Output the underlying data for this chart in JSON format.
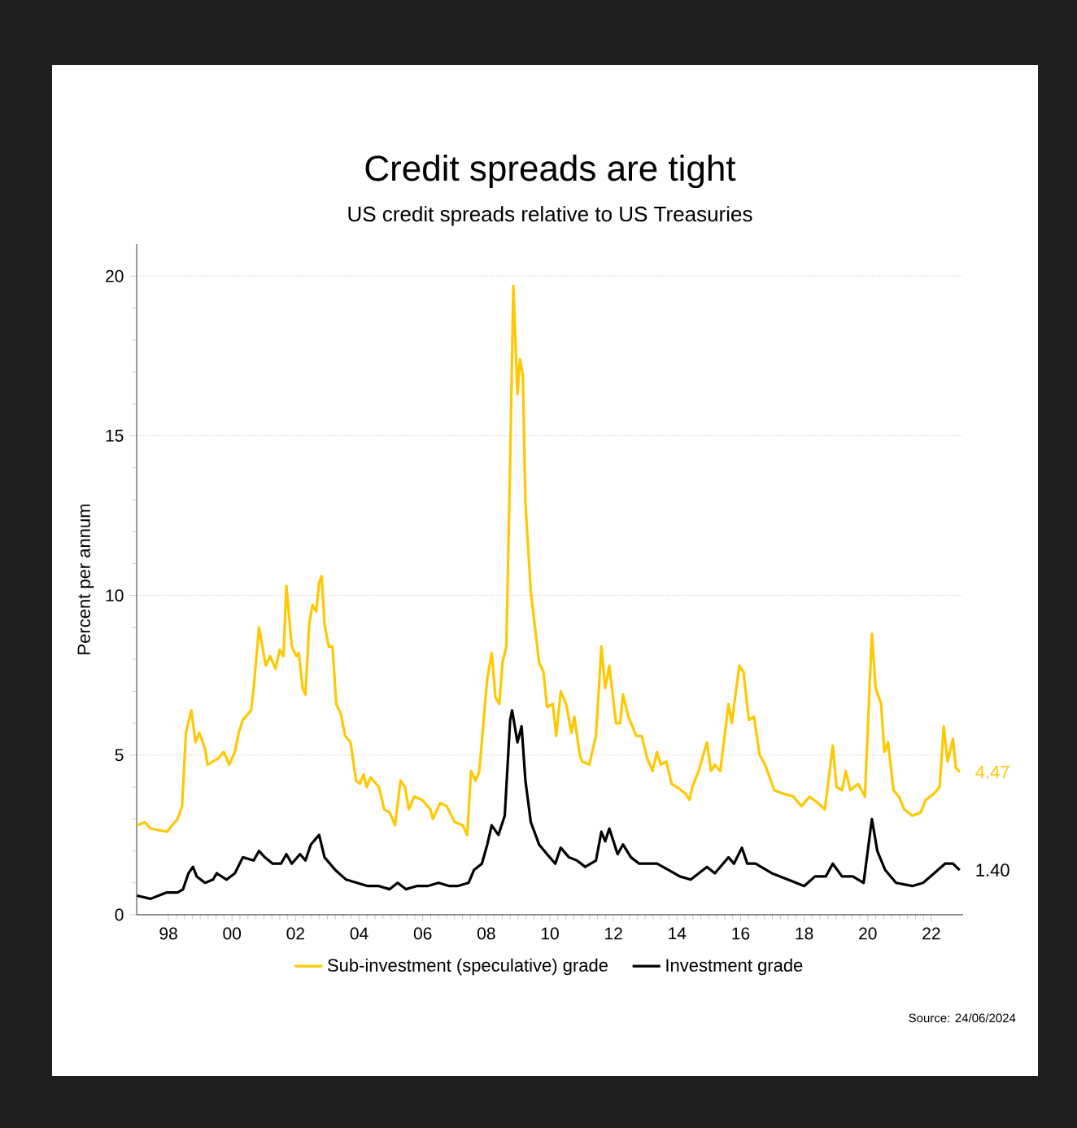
{
  "chart_data": {
    "type": "line",
    "title": "Credit spreads are tight",
    "subtitle": "US credit spreads relative to US Treasuries",
    "ylabel": "Percent per annum",
    "xlim": [
      1997,
      2023
    ],
    "ylim": [
      0,
      21
    ],
    "xticks": [
      {
        "value": 1998,
        "label": "98"
      },
      {
        "value": 2000,
        "label": "00"
      },
      {
        "value": 2002,
        "label": "02"
      },
      {
        "value": 2004,
        "label": "04"
      },
      {
        "value": 2006,
        "label": "06"
      },
      {
        "value": 2008,
        "label": "08"
      },
      {
        "value": 2010,
        "label": "10"
      },
      {
        "value": 2012,
        "label": "12"
      },
      {
        "value": 2014,
        "label": "14"
      },
      {
        "value": 2016,
        "label": "16"
      },
      {
        "value": 2018,
        "label": "18"
      },
      {
        "value": 2020,
        "label": "20"
      },
      {
        "value": 2022,
        "label": "22"
      }
    ],
    "yticks": [
      0,
      5,
      10,
      15,
      20
    ],
    "grid": "y",
    "legend": "bottom",
    "line_style": "solid",
    "series": [
      {
        "name": "Sub-investment (speculative) grade",
        "color": "#ffc800",
        "x": [
          1997.01,
          1997.26,
          1997.44,
          1997.95,
          1998.29,
          1998.43,
          1998.55,
          1998.72,
          1998.85,
          1998.97,
          1999.15,
          1999.23,
          1999.57,
          1999.74,
          1999.91,
          2000.09,
          2000.21,
          2000.34,
          2000.6,
          2000.68,
          2000.85,
          2001.06,
          2001.2,
          2001.37,
          2001.5,
          2001.62,
          2001.71,
          2001.88,
          2002.02,
          2002.1,
          2002.22,
          2002.31,
          2002.43,
          2002.53,
          2002.65,
          2002.74,
          2002.82,
          2002.91,
          2003.04,
          2003.16,
          2003.28,
          2003.42,
          2003.56,
          2003.73,
          2003.9,
          2004.02,
          2004.14,
          2004.24,
          2004.36,
          2004.62,
          2004.79,
          2004.96,
          2005.13,
          2005.3,
          2005.44,
          2005.56,
          2005.73,
          2005.98,
          2006.24,
          2006.32,
          2006.55,
          2006.75,
          2007.01,
          2007.26,
          2007.4,
          2007.52,
          2007.66,
          2007.78,
          2007.9,
          2008.03,
          2008.17,
          2008.29,
          2008.41,
          2008.51,
          2008.63,
          2008.75,
          2008.85,
          2008.98,
          2009.06,
          2009.15,
          2009.23,
          2009.4,
          2009.52,
          2009.66,
          2009.8,
          2009.91,
          2010.09,
          2010.2,
          2010.34,
          2010.51,
          2010.68,
          2010.77,
          2010.94,
          2011.02,
          2011.24,
          2011.45,
          2011.62,
          2011.74,
          2011.87,
          2012.08,
          2012.21,
          2012.3,
          2012.47,
          2012.72,
          2012.89,
          2013.06,
          2013.23,
          2013.37,
          2013.49,
          2013.66,
          2013.83,
          2014.0,
          2014.26,
          2014.39,
          2014.48,
          2014.68,
          2014.94,
          2015.07,
          2015.19,
          2015.36,
          2015.62,
          2015.72,
          2015.96,
          2016.09,
          2016.26,
          2016.42,
          2016.6,
          2016.77,
          2017.06,
          2017.32,
          2017.66,
          2017.91,
          2018.17,
          2018.43,
          2018.65,
          2018.9,
          2019.02,
          2019.19,
          2019.31,
          2019.45,
          2019.7,
          2019.91,
          2020.13,
          2020.25,
          2020.42,
          2020.52,
          2020.64,
          2020.81,
          2020.98,
          2021.15,
          2021.4,
          2021.66,
          2021.83,
          2022.09,
          2022.26,
          2022.39,
          2022.51,
          2022.68,
          2022.77,
          2022.89
        ],
        "values": [
          2.8,
          2.9,
          2.7,
          2.6,
          3.0,
          3.4,
          5.7,
          6.4,
          5.4,
          5.7,
          5.2,
          4.7,
          4.9,
          5.1,
          4.7,
          5.1,
          5.7,
          6.1,
          6.4,
          7.1,
          9.0,
          7.8,
          8.1,
          7.7,
          8.3,
          8.1,
          10.3,
          8.4,
          8.1,
          8.2,
          7.1,
          6.9,
          9.1,
          9.7,
          9.5,
          10.4,
          10.6,
          9.1,
          8.4,
          8.4,
          6.6,
          6.3,
          5.6,
          5.4,
          4.2,
          4.1,
          4.4,
          4.0,
          4.3,
          4.0,
          3.3,
          3.2,
          2.8,
          4.2,
          4.0,
          3.3,
          3.7,
          3.6,
          3.3,
          3.0,
          3.5,
          3.4,
          2.9,
          2.8,
          2.5,
          4.5,
          4.2,
          4.5,
          5.9,
          7.4,
          8.2,
          6.8,
          6.6,
          7.9,
          8.4,
          14.2,
          19.7,
          16.3,
          17.4,
          16.9,
          12.9,
          10.1,
          9.1,
          7.9,
          7.6,
          6.5,
          6.6,
          5.6,
          7.0,
          6.6,
          5.7,
          6.2,
          5.0,
          4.8,
          4.7,
          5.6,
          8.4,
          7.1,
          7.8,
          6.0,
          6.0,
          6.9,
          6.2,
          5.6,
          5.6,
          4.9,
          4.5,
          5.1,
          4.7,
          4.8,
          4.1,
          4.0,
          3.8,
          3.6,
          4.0,
          4.5,
          5.4,
          4.5,
          4.7,
          4.5,
          6.6,
          6.0,
          7.8,
          7.6,
          6.1,
          6.2,
          5.0,
          4.7,
          3.9,
          3.8,
          3.7,
          3.4,
          3.7,
          3.5,
          3.3,
          5.3,
          4.0,
          3.9,
          4.5,
          3.9,
          4.1,
          3.7,
          8.8,
          7.1,
          6.6,
          5.1,
          5.4,
          3.9,
          3.7,
          3.3,
          3.1,
          3.2,
          3.6,
          3.8,
          4.0,
          5.9,
          4.8,
          5.5,
          4.6,
          4.47
        ]
      },
      {
        "name": "Investment grade",
        "color": "#000000",
        "x": [
          1997.01,
          1997.44,
          1997.69,
          1997.95,
          1998.29,
          1998.46,
          1998.63,
          1998.77,
          1998.89,
          1999.15,
          1999.4,
          1999.52,
          1999.83,
          2000.09,
          2000.34,
          2000.68,
          2000.85,
          2001.03,
          2001.28,
          2001.54,
          2001.71,
          2001.88,
          2002.14,
          2002.31,
          2002.48,
          2002.74,
          2002.91,
          2003.25,
          2003.59,
          2003.93,
          2004.27,
          2004.62,
          2004.96,
          2005.21,
          2005.47,
          2005.81,
          2006.15,
          2006.5,
          2006.84,
          2007.09,
          2007.44,
          2007.61,
          2007.86,
          2008.03,
          2008.17,
          2008.38,
          2008.58,
          2008.75,
          2008.81,
          2008.98,
          2009.11,
          2009.23,
          2009.4,
          2009.66,
          2009.91,
          2010.17,
          2010.34,
          2010.6,
          2010.85,
          2011.11,
          2011.45,
          2011.62,
          2011.74,
          2011.87,
          2012.13,
          2012.3,
          2012.55,
          2012.81,
          2013.06,
          2013.37,
          2013.74,
          2014.09,
          2014.43,
          2014.94,
          2015.19,
          2015.62,
          2015.79,
          2016.04,
          2016.21,
          2016.47,
          2016.98,
          2017.49,
          2018.0,
          2018.34,
          2018.68,
          2018.9,
          2019.19,
          2019.53,
          2019.87,
          2020.13,
          2020.3,
          2020.55,
          2020.89,
          2021.4,
          2021.74,
          2022.09,
          2022.43,
          2022.68,
          2022.89
        ],
        "values": [
          0.6,
          0.5,
          0.6,
          0.7,
          0.7,
          0.8,
          1.3,
          1.5,
          1.2,
          1.0,
          1.1,
          1.3,
          1.1,
          1.3,
          1.8,
          1.7,
          2.0,
          1.8,
          1.6,
          1.6,
          1.9,
          1.6,
          1.9,
          1.7,
          2.2,
          2.5,
          1.8,
          1.4,
          1.1,
          1.0,
          0.9,
          0.9,
          0.8,
          1.0,
          0.8,
          0.9,
          0.9,
          1.0,
          0.9,
          0.9,
          1.0,
          1.4,
          1.6,
          2.2,
          2.8,
          2.5,
          3.1,
          6.1,
          6.4,
          5.4,
          5.9,
          4.2,
          2.9,
          2.2,
          1.9,
          1.6,
          2.1,
          1.8,
          1.7,
          1.5,
          1.7,
          2.6,
          2.3,
          2.7,
          1.9,
          2.2,
          1.8,
          1.6,
          1.6,
          1.6,
          1.4,
          1.2,
          1.1,
          1.5,
          1.3,
          1.8,
          1.6,
          2.1,
          1.6,
          1.6,
          1.3,
          1.1,
          0.9,
          1.2,
          1.2,
          1.6,
          1.2,
          1.2,
          1.0,
          3.0,
          2.0,
          1.4,
          1.0,
          0.9,
          1.0,
          1.3,
          1.6,
          1.6,
          1.4
        ]
      }
    ],
    "annotations": [
      {
        "text": "4.47",
        "x": 2022.89,
        "y": 4.47
      },
      {
        "text": "1.40",
        "x": 2022.89,
        "y": 1.4
      },
      "Source: 24/06/2024"
    ]
  }
}
